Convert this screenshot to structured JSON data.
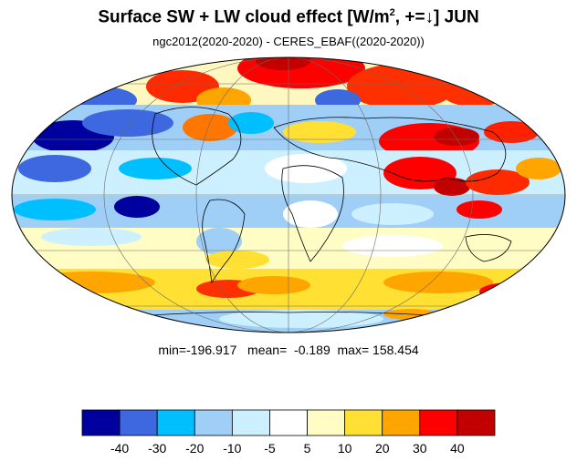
{
  "title": {
    "main": "Surface SW + LW cloud effect [W/m",
    "sup": "2",
    "rest": ", +=↓]  JUN"
  },
  "subtitle": "ngc2012(2020-2020) - CERES_EBAF((2020-2020))",
  "stats": {
    "min_label": "min=",
    "min": "-196.917",
    "mean_label": "mean=",
    "mean": "-0.189",
    "max_label": "max=",
    "max": "158.454"
  },
  "map": {
    "projection": "mollweide",
    "graticule": true,
    "ocean_background": "#ffffff"
  },
  "colorbar": {
    "colors": [
      "#00009e",
      "#3d68e0",
      "#00bfff",
      "#9fcff7",
      "#ccf0ff",
      "#ffffff",
      "#fffcc4",
      "#ffe033",
      "#ffa500",
      "#ff0000",
      "#c20000"
    ],
    "labels": [
      "-40",
      "-30",
      "-20",
      "-10",
      "-5",
      "5",
      "10",
      "20",
      "30",
      "40"
    ]
  }
}
